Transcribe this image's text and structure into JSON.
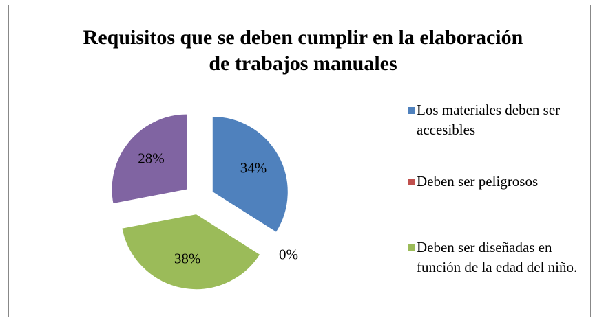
{
  "chart_data": {
    "type": "pie",
    "title": "Requisitos que se deben cumplir en la elaboración de trabajos manuales",
    "categories": [
      "Los materiales deben ser accesibles",
      "Deben ser peligrosos",
      "Deben ser diseñadas en función de la edad del niño.",
      null
    ],
    "values": [
      34,
      0,
      38,
      28
    ],
    "value_labels": [
      "34%",
      "0%",
      "38%",
      "28%"
    ],
    "colors": [
      "#4f81bd",
      "#c0504d",
      "#9bbb59",
      "#8064a2"
    ],
    "legend": "right"
  }
}
